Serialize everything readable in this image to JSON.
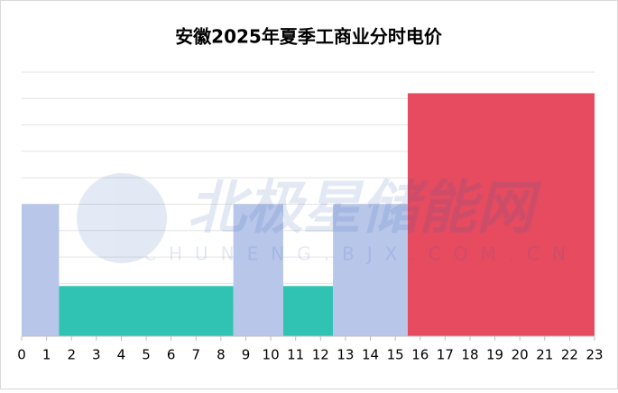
{
  "chart_data": {
    "type": "histogram",
    "title": "安徽2025年夏季工商业分时电价",
    "bins": [
      0,
      1.5,
      8.5,
      10.5,
      12.5,
      15.5,
      23
    ],
    "values": [
      5,
      1.9,
      5,
      1.9,
      5,
      9.2
    ],
    "colors": [
      "#b8c6ea",
      "#30c2b2",
      "#b8c6ea",
      "#30c2b2",
      "#b8c6ea",
      "#e64b5f"
    ],
    "xlim": [
      0,
      23
    ],
    "xticks": [
      0,
      1,
      2,
      3,
      4,
      5,
      6,
      7,
      8,
      9,
      10,
      11,
      12,
      13,
      14,
      15,
      16,
      17,
      18,
      19,
      20,
      21,
      22,
      23
    ],
    "ylim": [
      0,
      10
    ],
    "yticks": [
      0,
      1,
      2,
      3,
      4,
      5,
      6,
      7,
      8,
      9,
      10
    ],
    "ytick_labels": false,
    "grid": true,
    "watermark": "北极星储能网",
    "watermark_sub": "CHUNENG.BJX.COM.CN"
  }
}
